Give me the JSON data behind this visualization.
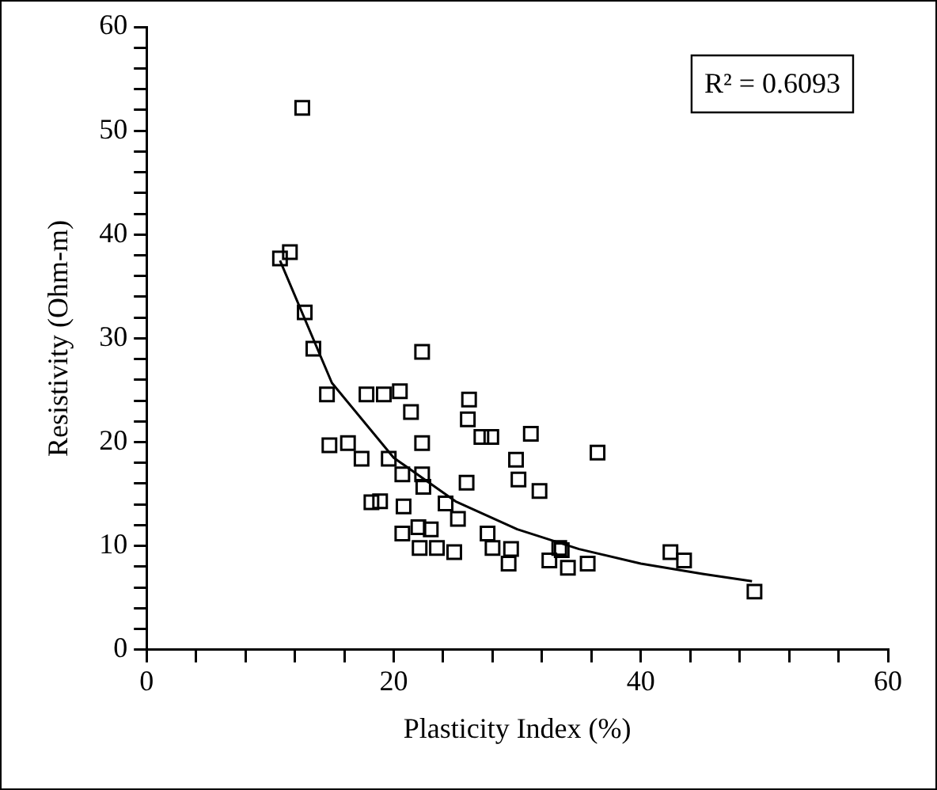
{
  "chart_data": {
    "type": "scatter",
    "xlabel": "Plasticity Index (%)",
    "ylabel": "Resistivity (Ohm-m)",
    "annotations": [
      "R² = 0.6093"
    ],
    "xlim": [
      0,
      60
    ],
    "ylim": [
      0,
      60
    ],
    "xticks": [
      0,
      {
        "value": 4,
        "label": null
      },
      {
        "value": 8,
        "label": null
      },
      {
        "value": 12,
        "label": null
      },
      {
        "value": 16,
        "label": null
      },
      20,
      {
        "value": 24,
        "label": null
      },
      {
        "value": 28,
        "label": null
      },
      {
        "value": 32,
        "label": null
      },
      {
        "value": 36,
        "label": null
      },
      40,
      {
        "value": 44,
        "label": null
      },
      {
        "value": 48,
        "label": null
      },
      {
        "value": 52,
        "label": null
      },
      {
        "value": 56,
        "label": null
      },
      60
    ],
    "yticks": [
      0,
      {
        "value": 2,
        "label": null
      },
      {
        "value": 4,
        "label": null
      },
      {
        "value": 6,
        "label": null
      },
      {
        "value": 8,
        "label": null
      },
      10,
      {
        "value": 12,
        "label": null
      },
      {
        "value": 14,
        "label": null
      },
      {
        "value": 16,
        "label": null
      },
      {
        "value": 18,
        "label": null
      },
      20,
      {
        "value": 22,
        "label": null
      },
      {
        "value": 24,
        "label": null
      },
      {
        "value": 26,
        "label": null
      },
      {
        "value": 28,
        "label": null
      },
      30,
      {
        "value": 32,
        "label": null
      },
      {
        "value": 34,
        "label": null
      },
      {
        "value": 36,
        "label": null
      },
      {
        "value": 38,
        "label": null
      },
      40,
      {
        "value": 42,
        "label": null
      },
      {
        "value": 44,
        "label": null
      },
      {
        "value": 46,
        "label": null
      },
      {
        "value": 48,
        "label": null
      },
      50,
      {
        "value": 52,
        "label": null
      },
      {
        "value": 54,
        "label": null
      },
      {
        "value": 56,
        "label": null
      },
      {
        "value": 58,
        "label": null
      },
      60
    ],
    "grid": false,
    "legend": false,
    "series": [
      {
        "type": "scatter",
        "marker": "square",
        "color": "#000000",
        "x": [
          12.6,
          10.8,
          11.6,
          12.8,
          13.5,
          14.6,
          17.8,
          19.2,
          20.5,
          21.4,
          22.3,
          14.8,
          16.3,
          17.4,
          19.6,
          22.3,
          20.7,
          22.3,
          22.4,
          18.2,
          18.9,
          20.8,
          20.7,
          22.0,
          23.0,
          22.1,
          23.5,
          26.1,
          26.0,
          27.1,
          27.9,
          31.1,
          36.5,
          29.9,
          30.1,
          31.8,
          25.9,
          24.2,
          25.2,
          24.9,
          27.6,
          28.0,
          29.5,
          29.3,
          32.6,
          33.4,
          33.6,
          34.1,
          35.7,
          42.4,
          43.5,
          49.2
        ],
        "values": [
          52.2,
          37.7,
          38.3,
          32.5,
          29.0,
          24.6,
          24.6,
          24.6,
          24.9,
          22.9,
          28.7,
          19.7,
          19.9,
          18.4,
          18.4,
          19.9,
          16.9,
          16.9,
          15.7,
          14.2,
          14.3,
          13.8,
          11.2,
          11.8,
          11.6,
          9.8,
          9.8,
          24.1,
          22.2,
          20.5,
          20.5,
          20.8,
          19.0,
          18.3,
          16.4,
          15.3,
          16.1,
          14.1,
          12.6,
          9.4,
          11.2,
          9.8,
          9.7,
          8.3,
          8.6,
          9.8,
          9.6,
          7.9,
          8.3,
          9.4,
          8.6,
          5.6
        ]
      },
      {
        "type": "line",
        "marker": "none",
        "line_style": "solid",
        "color": "#000000",
        "x": [
          10.8,
          15,
          20,
          25,
          30,
          35,
          40,
          45,
          49
        ],
        "values": [
          37.5,
          25.7,
          18.5,
          14.3,
          11.6,
          9.7,
          8.3,
          7.3,
          6.6
        ]
      }
    ]
  }
}
